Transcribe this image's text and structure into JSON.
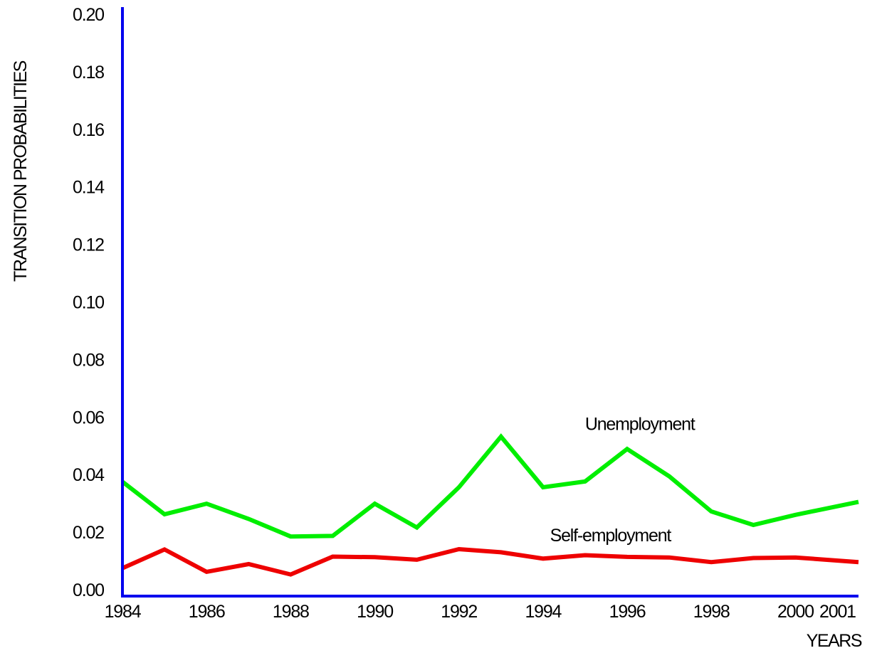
{
  "chart_data": {
    "type": "line",
    "title": "",
    "xlabel": "YEARS",
    "ylabel": "TRANSITION PROBABILITIES",
    "xlim": [
      1984,
      2001.5
    ],
    "ylim": [
      0,
      0.2
    ],
    "grid": false,
    "x_ticks": [
      1984,
      1986,
      1988,
      1990,
      1992,
      1994,
      1996,
      1998,
      2000,
      2001
    ],
    "x_tick_labels": [
      "1984",
      "1986",
      "1988",
      "1990",
      "1992",
      "1994",
      "1996",
      "1998",
      "2000",
      "2001"
    ],
    "y_ticks": [
      0.0,
      0.02,
      0.04,
      0.06,
      0.08,
      0.1,
      0.12,
      0.14,
      0.16,
      0.18,
      0.2
    ],
    "y_tick_labels": [
      "0.00",
      "0.02",
      "0.04",
      "0.06",
      "0.08",
      "0.10",
      "0.12",
      "0.14",
      "0.16",
      "0.18",
      "0.20"
    ],
    "axis_color": "#0000ee",
    "series": [
      {
        "name": "Unemployment",
        "color": "#00ee00",
        "label_anchor": [
          1996.3,
          0.0555
        ],
        "x": [
          1984,
          1985,
          1986,
          1987,
          1988,
          1989,
          1990,
          1991,
          1992,
          1993,
          1994,
          1995,
          1996,
          1997,
          1998,
          1999,
          2000,
          2001.5
        ],
        "y": [
          0.0375,
          0.0262,
          0.0299,
          0.0246,
          0.0185,
          0.0187,
          0.0299,
          0.0216,
          0.0356,
          0.0532,
          0.0356,
          0.0376,
          0.0489,
          0.0394,
          0.0272,
          0.0225,
          0.026,
          0.0305
        ]
      },
      {
        "name": "Self-employment",
        "color": "#ee0000",
        "label_anchor": [
          1995.6,
          0.0168
        ],
        "x": [
          1984,
          1985,
          1986,
          1987,
          1988,
          1989,
          1990,
          1991,
          1992,
          1993,
          1994,
          1995,
          1996,
          1997,
          1998,
          1999,
          2000,
          2001.5
        ],
        "y": [
          0.0075,
          0.014,
          0.0062,
          0.0089,
          0.0053,
          0.0115,
          0.0113,
          0.0104,
          0.0141,
          0.013,
          0.0108,
          0.012,
          0.0114,
          0.0112,
          0.0096,
          0.011,
          0.0112,
          0.0096
        ]
      }
    ]
  }
}
